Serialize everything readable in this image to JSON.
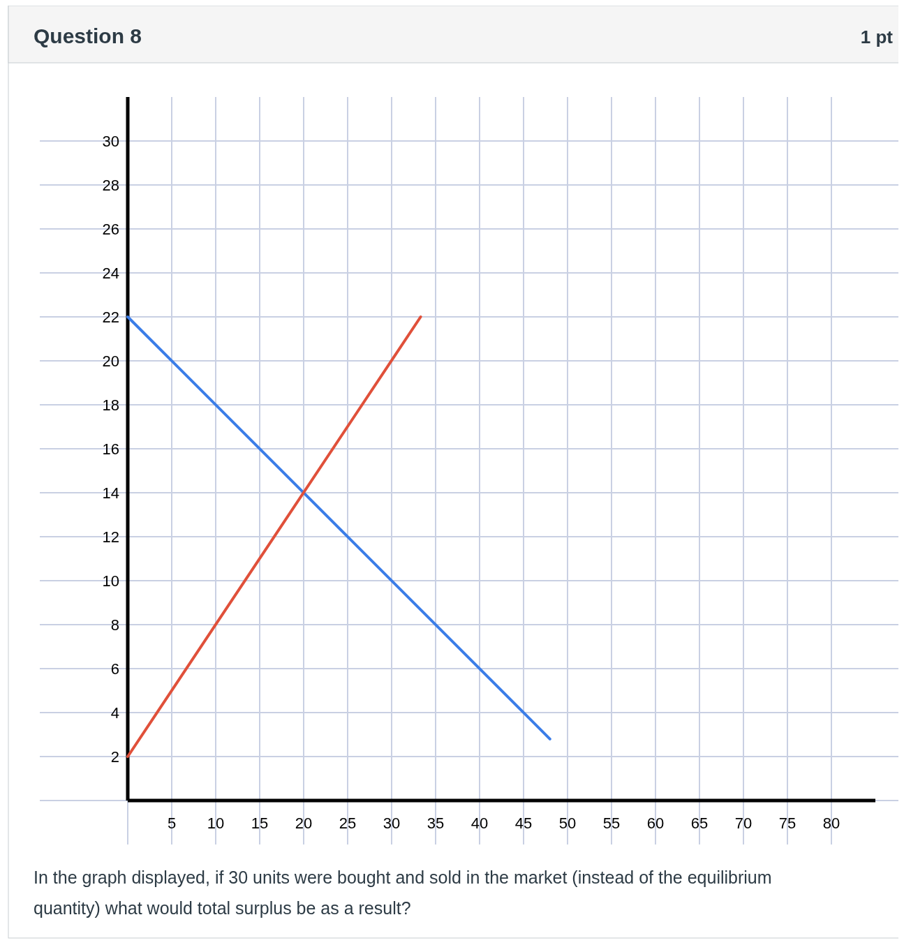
{
  "chart_data": {
    "type": "line",
    "title": "Question 8",
    "subtitle": "1 pt",
    "series": [
      {
        "color": "#3b7de8",
        "x": [
          0,
          48
        ],
        "values": [
          22,
          2.8
        ]
      },
      {
        "color": "#e0503a",
        "x": [
          0,
          33.3
        ],
        "values": [
          2,
          22
        ]
      }
    ],
    "xlim": [
      0,
      85
    ],
    "ylim": [
      0,
      32
    ],
    "xticks": [
      5,
      10,
      15,
      20,
      25,
      30,
      35,
      40,
      45,
      50,
      55,
      60,
      65,
      70,
      75,
      80
    ],
    "yticks": [
      2,
      4,
      6,
      8,
      10,
      12,
      14,
      16,
      18,
      20,
      22,
      24,
      26,
      28,
      30
    ],
    "grid": true,
    "marker": "none",
    "line_style": "solid",
    "annotations": [
      "In the graph displayed, if 30 units were bought and sold in the market (instead of the equilibrium quantity) what would total surplus be as a result?"
    ]
  }
}
